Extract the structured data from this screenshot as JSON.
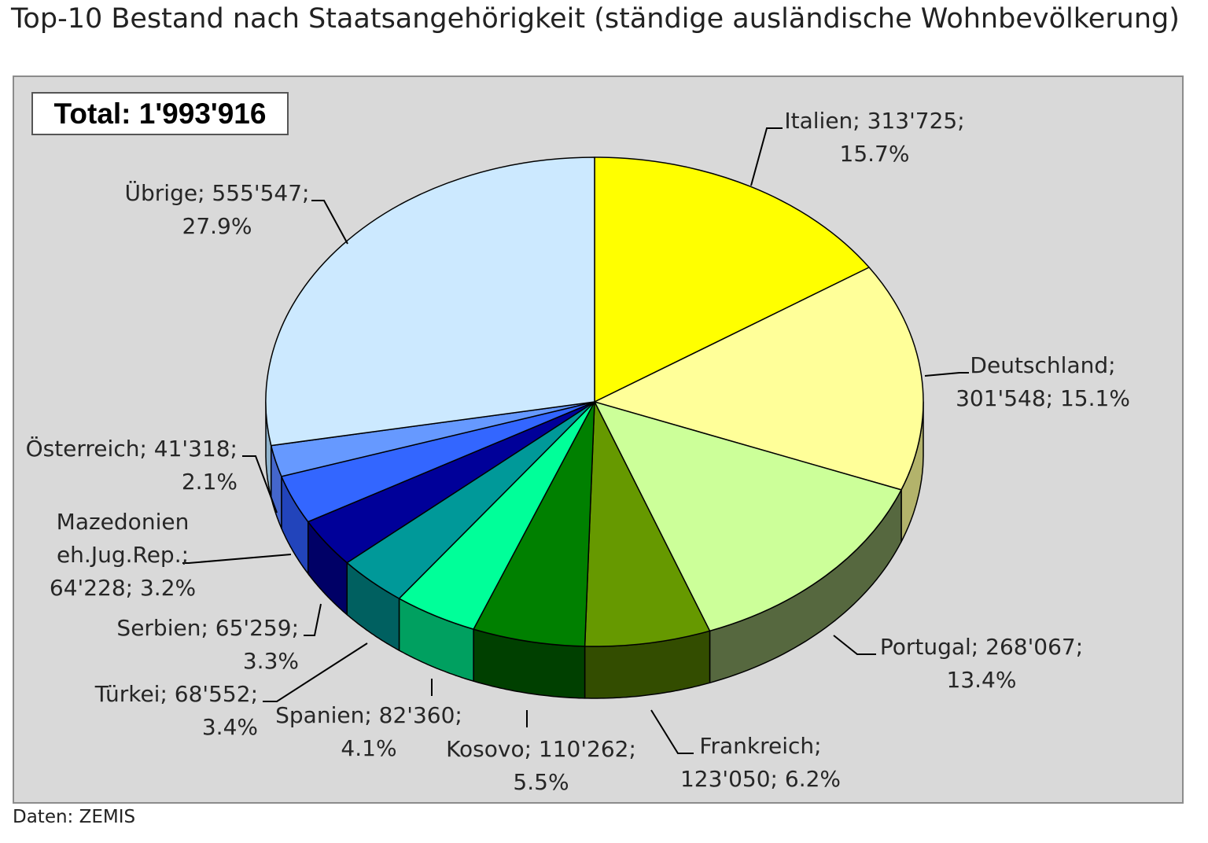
{
  "title": "Top-10 Bestand nach Staatsangehörigkeit (ständige ausländische Wohnbevölkerung)",
  "total_label": "Total:  1'993'916",
  "source": "Daten: ZEMIS",
  "chart_data": {
    "type": "pie",
    "total": 1993916,
    "slices": [
      {
        "name": "Italien",
        "value": 313725,
        "percent": 15.7,
        "color": "#ffff00",
        "side": "#b3b300",
        "label_lines": [
          "Italien; 313'725;",
          "15.7%"
        ]
      },
      {
        "name": "Deutschland",
        "value": 301548,
        "percent": 15.1,
        "color": "#ffff99",
        "side": "#b3b36b",
        "label_lines": [
          "Deutschland;",
          "301'548; 15.1%"
        ]
      },
      {
        "name": "Portugal",
        "value": 268067,
        "percent": 13.4,
        "color": "#ccff99",
        "side": "#56683f",
        "label_lines": [
          "Portugal; 268'067;",
          "13.4%"
        ]
      },
      {
        "name": "Frankreich",
        "value": 123050,
        "percent": 6.2,
        "color": "#669900",
        "side": "#334d00",
        "label_lines": [
          "Frankreich;",
          "123'050; 6.2%"
        ]
      },
      {
        "name": "Kosovo",
        "value": 110262,
        "percent": 5.5,
        "color": "#008000",
        "side": "#004000",
        "label_lines": [
          "Kosovo; 110'262;",
          "5.5%"
        ]
      },
      {
        "name": "Spanien",
        "value": 82360,
        "percent": 4.1,
        "color": "#00ff99",
        "side": "#00a060",
        "label_lines": [
          "Spanien; 82'360;",
          "4.1%"
        ]
      },
      {
        "name": "Türkei",
        "value": 68552,
        "percent": 3.4,
        "color": "#009999",
        "side": "#006060",
        "label_lines": [
          "Türkei; 68'552;",
          "3.4%"
        ]
      },
      {
        "name": "Serbien",
        "value": 65259,
        "percent": 3.3,
        "color": "#000099",
        "side": "#000066",
        "label_lines": [
          "Serbien; 65'259;",
          "3.3%"
        ]
      },
      {
        "name": "Mazedonien eh.Jug.Rep.",
        "value": 64228,
        "percent": 3.2,
        "color": "#3366ff",
        "side": "#2244bb",
        "label_lines": [
          "Mazedonien",
          "eh.Jug.Rep.;",
          "64'228; 3.2%"
        ]
      },
      {
        "name": "Österreich",
        "value": 41318,
        "percent": 2.1,
        "color": "#6699ff",
        "side": "#4466cc",
        "label_lines": [
          "Österreich; 41'318;",
          "2.1%"
        ]
      },
      {
        "name": "Übrige",
        "value": 555547,
        "percent": 27.9,
        "color": "#cce9ff",
        "side": "#8fb3cc",
        "label_lines": [
          "Übrige; 555'547;",
          "27.9%"
        ]
      }
    ]
  }
}
